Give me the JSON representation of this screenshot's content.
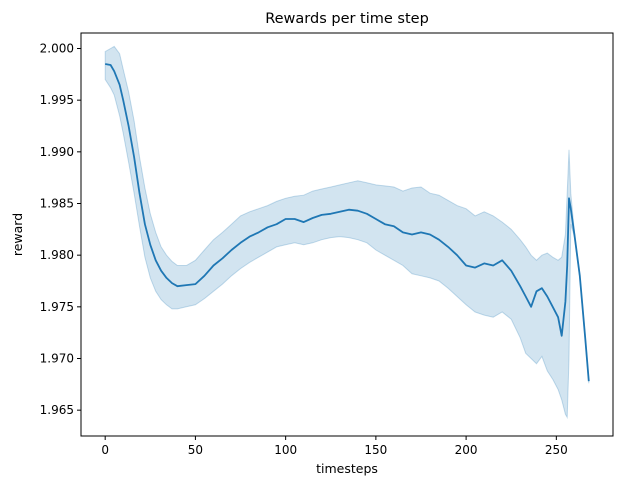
{
  "chart_data": {
    "type": "line",
    "title": "Rewards per time step",
    "xlabel": "timesteps",
    "ylabel": "reward",
    "xlim": [
      -13.4,
      281.4
    ],
    "ylim": [
      1.9625,
      2.0015
    ],
    "xticks": [
      0,
      50,
      100,
      150,
      200,
      250
    ],
    "xtick_labels": [
      "0",
      "50",
      "100",
      "150",
      "200",
      "250"
    ],
    "yticks": [
      1.965,
      1.97,
      1.975,
      1.98,
      1.985,
      1.99,
      1.995,
      2.0
    ],
    "ytick_labels": [
      "1.965",
      "1.970",
      "1.975",
      "1.980",
      "1.985",
      "1.990",
      "1.995",
      "2.000"
    ],
    "grid": false,
    "legend": "none",
    "colors": {
      "line": "#1f77b4",
      "band": "#1f77b4"
    },
    "series": [
      {
        "x": [
          0,
          3,
          5,
          8,
          10,
          13,
          16,
          19,
          22,
          25,
          28,
          31,
          34,
          37,
          40,
          45,
          50,
          55,
          60,
          65,
          70,
          75,
          80,
          85,
          90,
          95,
          100,
          105,
          110,
          115,
          120,
          125,
          130,
          135,
          140,
          145,
          150,
          155,
          160,
          165,
          170,
          175,
          180,
          185,
          190,
          195,
          200,
          205,
          210,
          215,
          220,
          225,
          230,
          233,
          236,
          239,
          242,
          245,
          248,
          251,
          253,
          255,
          256,
          257,
          258,
          260,
          263,
          266,
          268
        ],
        "y": [
          1.9985,
          1.9984,
          1.9978,
          1.9965,
          1.995,
          1.9925,
          1.9895,
          1.986,
          1.983,
          1.981,
          1.9795,
          1.9785,
          1.9778,
          1.9773,
          1.977,
          1.9771,
          1.9772,
          1.978,
          1.979,
          1.9797,
          1.9805,
          1.9812,
          1.9818,
          1.9822,
          1.9827,
          1.983,
          1.9835,
          1.9835,
          1.9832,
          1.9836,
          1.9839,
          1.984,
          1.9842,
          1.9844,
          1.9843,
          1.984,
          1.9835,
          1.983,
          1.9828,
          1.9822,
          1.982,
          1.9822,
          1.982,
          1.9815,
          1.9808,
          1.98,
          1.979,
          1.9788,
          1.9792,
          1.979,
          1.9795,
          1.9785,
          1.977,
          1.976,
          1.975,
          1.9765,
          1.9768,
          1.976,
          1.975,
          1.974,
          1.9722,
          1.9755,
          1.979,
          1.9855,
          1.9845,
          1.982,
          1.978,
          1.972,
          1.9678
        ],
        "ci_upper": [
          1.9997,
          2.0,
          2.0002,
          1.9995,
          1.998,
          1.9958,
          1.993,
          1.9895,
          1.9865,
          1.984,
          1.9822,
          1.9808,
          1.98,
          1.9794,
          1.979,
          1.979,
          1.9795,
          1.9805,
          1.9815,
          1.9822,
          1.983,
          1.9838,
          1.9842,
          1.9845,
          1.9848,
          1.9852,
          1.9855,
          1.9857,
          1.9858,
          1.9862,
          1.9864,
          1.9866,
          1.9868,
          1.987,
          1.9872,
          1.987,
          1.9868,
          1.9867,
          1.9866,
          1.9862,
          1.9865,
          1.9866,
          1.986,
          1.9858,
          1.9853,
          1.9848,
          1.9845,
          1.9838,
          1.9842,
          1.9838,
          1.9832,
          1.9825,
          1.9815,
          1.9808,
          1.98,
          1.9795,
          1.98,
          1.9802,
          1.9798,
          1.9795,
          1.9798,
          1.982,
          1.986,
          1.9902,
          1.986,
          1.9822,
          1.978,
          1.9722,
          1.968
        ],
        "ci_lower": [
          1.997,
          1.9962,
          1.9955,
          1.9935,
          1.9918,
          1.989,
          1.986,
          1.9828,
          1.9798,
          1.9778,
          1.9765,
          1.9757,
          1.9752,
          1.9748,
          1.9748,
          1.975,
          1.9752,
          1.9758,
          1.9765,
          1.9772,
          1.978,
          1.9787,
          1.9793,
          1.9798,
          1.9803,
          1.9808,
          1.981,
          1.9812,
          1.981,
          1.9812,
          1.9815,
          1.9817,
          1.9818,
          1.9817,
          1.9815,
          1.9812,
          1.9805,
          1.98,
          1.9795,
          1.979,
          1.9782,
          1.978,
          1.9778,
          1.9775,
          1.9768,
          1.976,
          1.9752,
          1.9745,
          1.9742,
          1.974,
          1.9745,
          1.9738,
          1.972,
          1.9705,
          1.97,
          1.9695,
          1.9702,
          1.9688,
          1.968,
          1.967,
          1.966,
          1.9646,
          1.9643,
          1.97,
          1.983,
          1.9818,
          1.9778,
          1.9718,
          1.9676
        ]
      }
    ]
  }
}
